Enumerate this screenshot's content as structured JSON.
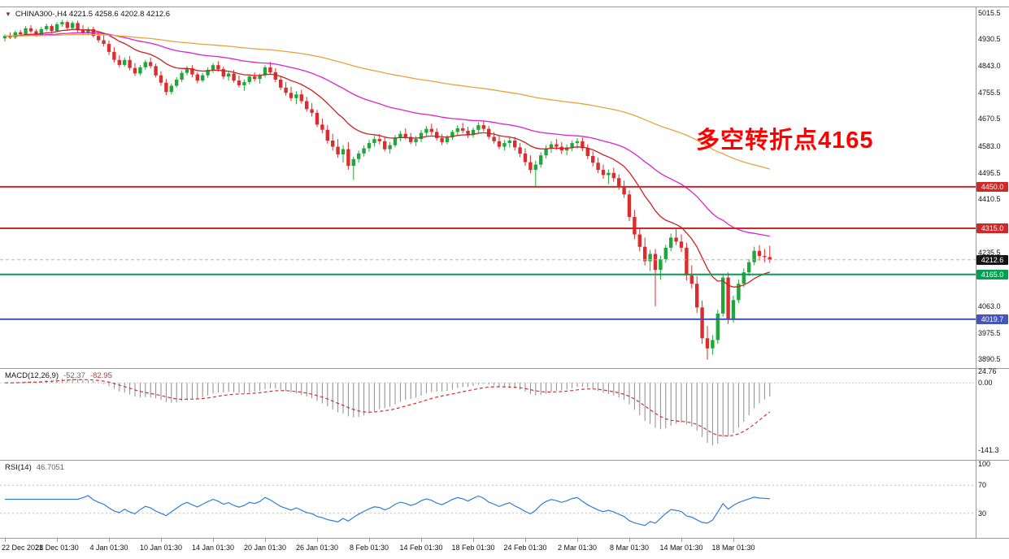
{
  "window": {
    "symbol_info": "CHINA300-,H4 4221.5 4258.6 4202.8 4212.6",
    "dropdown_icon": "▼"
  },
  "annotation": {
    "text": "多空转折点4165",
    "color": "#ff0000"
  },
  "price_axis": {
    "labels": [
      "5015.5",
      "4930.5",
      "4843.0",
      "4755.5",
      "4670.5",
      "4583.0",
      "4495.5",
      "4410.5",
      "4235.5",
      "4063.0",
      "3975.5",
      "3890.5"
    ],
    "badges": [
      {
        "value": "4450.0",
        "price": 4450.0,
        "color": "#d02828"
      },
      {
        "value": "4315.0",
        "price": 4315.0,
        "color": "#d02828"
      },
      {
        "value": "4212.6",
        "price": 4212.6,
        "color": "#141414"
      },
      {
        "value": "4165.0",
        "price": 4165.0,
        "color": "#00a050"
      },
      {
        "value": "4019.7",
        "price": 4019.7,
        "color": "#4553bd"
      }
    ]
  },
  "macd_panel": {
    "title": "MACD(12,26,9)",
    "value_main": "-52.37",
    "value_signal": "-82.95",
    "axis_labels": [
      "24.76",
      "0.00",
      "-141.3"
    ]
  },
  "rsi_panel": {
    "title": "RSI(14)",
    "value": "46.7051",
    "axis_labels": [
      "100",
      "70",
      "30"
    ],
    "levels": [
      70,
      30
    ]
  },
  "time_axis": {
    "labels": [
      {
        "t": "22 Dec 2021",
        "i": 0
      },
      {
        "t": "28 Dec 01:30",
        "i": 10
      },
      {
        "t": "4 Jan 01:30",
        "i": 20
      },
      {
        "t": "10 Jan 01:30",
        "i": 30
      },
      {
        "t": "14 Jan 01:30",
        "i": 40
      },
      {
        "t": "20 Jan 01:30",
        "i": 50
      },
      {
        "t": "26 Jan 01:30",
        "i": 60
      },
      {
        "t": "8 Feb 01:30",
        "i": 70
      },
      {
        "t": "14 Feb 01:30",
        "i": 80
      },
      {
        "t": "18 Feb 01:30",
        "i": 90
      },
      {
        "t": "24 Feb 01:30",
        "i": 100
      },
      {
        "t": "2 Mar 01:30",
        "i": 110
      },
      {
        "t": "8 Mar 01:30",
        "i": 120
      },
      {
        "t": "14 Mar 01:30",
        "i": 130
      },
      {
        "t": "18 Mar 01:30",
        "i": 140
      }
    ]
  },
  "chart_data": {
    "type": "candlestick",
    "title": "CHINA300- H4",
    "last_ohlc": {
      "open": 4221.5,
      "high": 4258.6,
      "low": 4202.8,
      "close": 4212.6
    },
    "y_range": [
      3861,
      5033
    ],
    "current_price": 4212.6,
    "candle_colors": {
      "up": "#1fa73c",
      "down": "#dd2c2c"
    },
    "moving_averages": [
      {
        "name": "ma-fast",
        "period": 16,
        "color": "#cc2222"
      },
      {
        "name": "ma-mid",
        "period": 48,
        "color": "#dd22cc"
      },
      {
        "name": "ma-slow",
        "period": 130,
        "color": "#e6a33c"
      }
    ],
    "hlines": [
      {
        "price": 4450.0,
        "color": "#d02828",
        "width": 2,
        "dashed": false
      },
      {
        "price": 4315.0,
        "color": "#d02828",
        "width": 2,
        "dashed": false
      },
      {
        "price": 4165.0,
        "color": "#00a050",
        "width": 2,
        "dashed": false
      },
      {
        "price": 4019.7,
        "color": "#4553bd",
        "width": 2,
        "dashed": false
      },
      {
        "price": 4212.6,
        "color": "#b5b5b5",
        "width": 1,
        "dashed": true
      }
    ],
    "macd": {
      "params": [
        12,
        26,
        9
      ],
      "range": [
        29.3,
        -162
      ],
      "histogram_color": "#8c8c8c",
      "signal_color": "#cc3333"
    },
    "rsi": {
      "params": [
        14
      ],
      "range": [
        105,
        -5
      ],
      "line_color": "#2f7fd6"
    },
    "ohlc": [
      [
        4932,
        4945,
        4922,
        4940
      ],
      [
        4940,
        4952,
        4930,
        4935
      ],
      [
        4935,
        4958,
        4930,
        4952
      ],
      [
        4952,
        4960,
        4940,
        4945
      ],
      [
        4945,
        4972,
        4942,
        4965
      ],
      [
        4965,
        4975,
        4950,
        4955
      ],
      [
        4955,
        4962,
        4938,
        4944
      ],
      [
        4944,
        4970,
        4940,
        4962
      ],
      [
        4962,
        4980,
        4955,
        4972
      ],
      [
        4972,
        4978,
        4948,
        4956
      ],
      [
        4956,
        4985,
        4952,
        4978
      ],
      [
        4978,
        4992,
        4970,
        4985
      ],
      [
        4985,
        4990,
        4958,
        4966
      ],
      [
        4966,
        4988,
        4960,
        4982
      ],
      [
        4982,
        4990,
        4952,
        4958
      ],
      [
        4958,
        4975,
        4945,
        4950
      ],
      [
        4950,
        4968,
        4942,
        4962
      ],
      [
        4962,
        4970,
        4935,
        4940
      ],
      [
        4940,
        4955,
        4918,
        4926
      ],
      [
        4926,
        4942,
        4906,
        4914
      ],
      [
        4914,
        4925,
        4878,
        4888
      ],
      [
        4888,
        4904,
        4854,
        4862
      ],
      [
        4862,
        4878,
        4838,
        4846
      ],
      [
        4846,
        4870,
        4840,
        4862
      ],
      [
        4862,
        4875,
        4828,
        4836
      ],
      [
        4836,
        4852,
        4810,
        4818
      ],
      [
        4818,
        4845,
        4812,
        4838
      ],
      [
        4838,
        4862,
        4830,
        4855
      ],
      [
        4855,
        4870,
        4835,
        4842
      ],
      [
        4842,
        4850,
        4805,
        4812
      ],
      [
        4812,
        4825,
        4778,
        4788
      ],
      [
        4788,
        4800,
        4748,
        4758
      ],
      [
        4758,
        4785,
        4750,
        4778
      ],
      [
        4778,
        4806,
        4772,
        4798
      ],
      [
        4798,
        4828,
        4790,
        4820
      ],
      [
        4820,
        4842,
        4812,
        4835
      ],
      [
        4835,
        4845,
        4806,
        4815
      ],
      [
        4815,
        4822,
        4786,
        4795
      ],
      [
        4795,
        4820,
        4790,
        4812
      ],
      [
        4812,
        4838,
        4804,
        4830
      ],
      [
        4830,
        4852,
        4820,
        4845
      ],
      [
        4845,
        4858,
        4824,
        4832
      ],
      [
        4832,
        4840,
        4800,
        4808
      ],
      [
        4808,
        4826,
        4795,
        4818
      ],
      [
        4818,
        4830,
        4788,
        4795
      ],
      [
        4795,
        4812,
        4772,
        4780
      ],
      [
        4780,
        4798,
        4762,
        4790
      ],
      [
        4790,
        4815,
        4782,
        4808
      ],
      [
        4808,
        4822,
        4792,
        4800
      ],
      [
        4800,
        4818,
        4785,
        4812
      ],
      [
        4812,
        4845,
        4805,
        4838
      ],
      [
        4838,
        4856,
        4814,
        4822
      ],
      [
        4822,
        4835,
        4790,
        4798
      ],
      [
        4798,
        4810,
        4764,
        4772
      ],
      [
        4772,
        4790,
        4746,
        4755
      ],
      [
        4755,
        4775,
        4728,
        4738
      ],
      [
        4738,
        4760,
        4718,
        4750
      ],
      [
        4750,
        4765,
        4720,
        4728
      ],
      [
        4728,
        4742,
        4694,
        4702
      ],
      [
        4702,
        4722,
        4678,
        4690
      ],
      [
        4690,
        4700,
        4644,
        4652
      ],
      [
        4652,
        4672,
        4624,
        4635
      ],
      [
        4635,
        4650,
        4590,
        4600
      ],
      [
        4600,
        4622,
        4568,
        4580
      ],
      [
        4580,
        4605,
        4544,
        4555
      ],
      [
        4555,
        4585,
        4528,
        4572
      ],
      [
        4572,
        4595,
        4505,
        4518
      ],
      [
        4518,
        4548,
        4472,
        4540
      ],
      [
        4540,
        4568,
        4528,
        4558
      ],
      [
        4558,
        4585,
        4548,
        4575
      ],
      [
        4575,
        4602,
        4564,
        4592
      ],
      [
        4592,
        4615,
        4580,
        4605
      ],
      [
        4605,
        4622,
        4588,
        4598
      ],
      [
        4598,
        4610,
        4565,
        4572
      ],
      [
        4572,
        4595,
        4558,
        4585
      ],
      [
        4585,
        4618,
        4578,
        4608
      ],
      [
        4608,
        4632,
        4598,
        4622
      ],
      [
        4622,
        4640,
        4604,
        4612
      ],
      [
        4612,
        4625,
        4588,
        4595
      ],
      [
        4595,
        4615,
        4582,
        4605
      ],
      [
        4605,
        4635,
        4595,
        4625
      ],
      [
        4625,
        4648,
        4612,
        4638
      ],
      [
        4638,
        4655,
        4618,
        4628
      ],
      [
        4628,
        4640,
        4600,
        4608
      ],
      [
        4608,
        4622,
        4585,
        4595
      ],
      [
        4595,
        4618,
        4588,
        4610
      ],
      [
        4610,
        4635,
        4602,
        4628
      ],
      [
        4628,
        4650,
        4615,
        4640
      ],
      [
        4640,
        4658,
        4624,
        4632
      ],
      [
        4632,
        4645,
        4608,
        4618
      ],
      [
        4618,
        4642,
        4610,
        4635
      ],
      [
        4635,
        4660,
        4622,
        4650
      ],
      [
        4650,
        4665,
        4630,
        4638
      ],
      [
        4638,
        4648,
        4604,
        4612
      ],
      [
        4612,
        4628,
        4590,
        4598
      ],
      [
        4598,
        4615,
        4572,
        4580
      ],
      [
        4580,
        4602,
        4568,
        4592
      ],
      [
        4592,
        4610,
        4578,
        4600
      ],
      [
        4600,
        4612,
        4568,
        4578
      ],
      [
        4578,
        4592,
        4546,
        4558
      ],
      [
        4558,
        4575,
        4518,
        4530
      ],
      [
        4530,
        4552,
        4494,
        4505
      ],
      [
        4505,
        4535,
        4452,
        4522
      ],
      [
        4522,
        4562,
        4512,
        4552
      ],
      [
        4552,
        4585,
        4542,
        4575
      ],
      [
        4575,
        4598,
        4560,
        4588
      ],
      [
        4588,
        4605,
        4570,
        4580
      ],
      [
        4580,
        4595,
        4556,
        4568
      ],
      [
        4568,
        4588,
        4552,
        4578
      ],
      [
        4578,
        4600,
        4565,
        4592
      ],
      [
        4592,
        4608,
        4574,
        4598
      ],
      [
        4598,
        4610,
        4566,
        4575
      ],
      [
        4575,
        4588,
        4540,
        4550
      ],
      [
        4550,
        4565,
        4516,
        4528
      ],
      [
        4528,
        4545,
        4494,
        4505
      ],
      [
        4505,
        4522,
        4476,
        4488
      ],
      [
        4488,
        4506,
        4458,
        4495
      ],
      [
        4495,
        4512,
        4466,
        4478
      ],
      [
        4478,
        4490,
        4440,
        4452
      ],
      [
        4452,
        4470,
        4414,
        4425
      ],
      [
        4425,
        4438,
        4338,
        4352
      ],
      [
        4352,
        4375,
        4280,
        4295
      ],
      [
        4295,
        4318,
        4240,
        4255
      ],
      [
        4255,
        4285,
        4194,
        4208
      ],
      [
        4208,
        4245,
        4176,
        4232
      ],
      [
        4232,
        4248,
        4062,
        4180
      ],
      [
        4180,
        4226,
        4148,
        4215
      ],
      [
        4215,
        4262,
        4204,
        4252
      ],
      [
        4252,
        4298,
        4240,
        4285
      ],
      [
        4285,
        4312,
        4260,
        4272
      ],
      [
        4272,
        4295,
        4238,
        4252
      ],
      [
        4252,
        4268,
        4146,
        4162
      ],
      [
        4162,
        4195,
        4120,
        4135
      ],
      [
        4135,
        4160,
        4040,
        4058
      ],
      [
        4058,
        4080,
        3940,
        3958
      ],
      [
        3958,
        3998,
        3888,
        3925
      ],
      [
        3925,
        3968,
        3904,
        3952
      ],
      [
        3952,
        4050,
        3940,
        4038
      ],
      [
        4038,
        4168,
        4028,
        4155
      ],
      [
        4155,
        4172,
        4004,
        4018
      ],
      [
        4018,
        4096,
        4008,
        4082
      ],
      [
        4082,
        4148,
        4072,
        4135
      ],
      [
        4135,
        4185,
        4124,
        4172
      ],
      [
        4172,
        4215,
        4160,
        4205
      ],
      [
        4205,
        4255,
        4195,
        4242
      ],
      [
        4242,
        4260,
        4210,
        4225
      ],
      [
        4225,
        4248,
        4205,
        4221.5
      ],
      [
        4221.5,
        4258.6,
        4202.8,
        4212.6
      ]
    ]
  }
}
